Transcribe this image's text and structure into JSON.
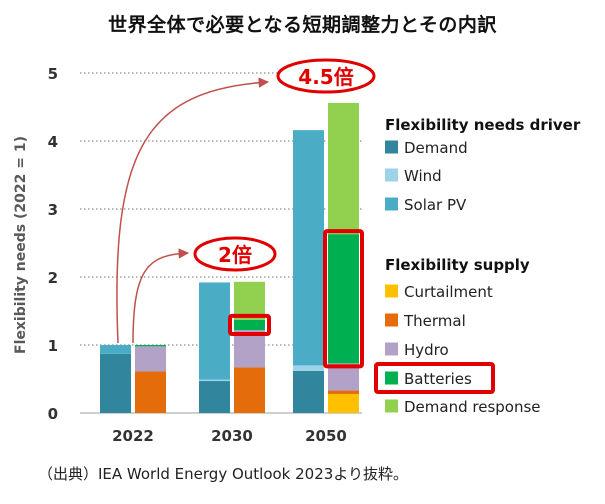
{
  "title": "世界全体で必要となる短期調整力とその内訳",
  "source": "（出典）IEA World Energy Outlook 2023より抜粋。",
  "chart_data": {
    "type": "bar",
    "stacked": true,
    "ylabel": "Flexibility needs (2022 = 1)",
    "ylim": [
      0,
      5
    ],
    "yticks": [
      0,
      1,
      2,
      3,
      4,
      5
    ],
    "grid": true,
    "categories": [
      "2022",
      "2030",
      "2050"
    ],
    "drivers_title": "Flexibility needs driver",
    "supply_title": "Flexibility supply",
    "drivers": [
      {
        "name": "Demand",
        "color": "#31859C",
        "values": [
          0.87,
          0.47,
          0.62
        ]
      },
      {
        "name": "Wind",
        "color": "#9DD3E8",
        "values": [
          0.0,
          0.02,
          0.08
        ]
      },
      {
        "name": "Solar PV",
        "color": "#4BACC6",
        "values": [
          0.13,
          1.43,
          3.46
        ]
      }
    ],
    "supply": [
      {
        "name": "Curtailment",
        "color": "#FFC000",
        "values": [
          0.0,
          0.0,
          0.28
        ]
      },
      {
        "name": "Thermal",
        "color": "#E46C0A",
        "values": [
          0.61,
          0.67,
          0.05
        ]
      },
      {
        "name": "Hydro",
        "color": "#B3A2C7",
        "values": [
          0.37,
          0.55,
          0.4
        ]
      },
      {
        "name": "Batteries",
        "color": "#00B050",
        "values": [
          0.02,
          0.15,
          1.9
        ]
      },
      {
        "name": "Demand response",
        "color": "#92D050",
        "values": [
          0.0,
          0.56,
          1.93
        ]
      }
    ],
    "annotations": [
      {
        "text": "2倍",
        "from": "2022",
        "to": "2030",
        "value": 2
      },
      {
        "text": "4.5倍",
        "from": "2022",
        "to": "2050",
        "value": 4.5
      }
    ],
    "highlighted": [
      "Batteries"
    ]
  }
}
